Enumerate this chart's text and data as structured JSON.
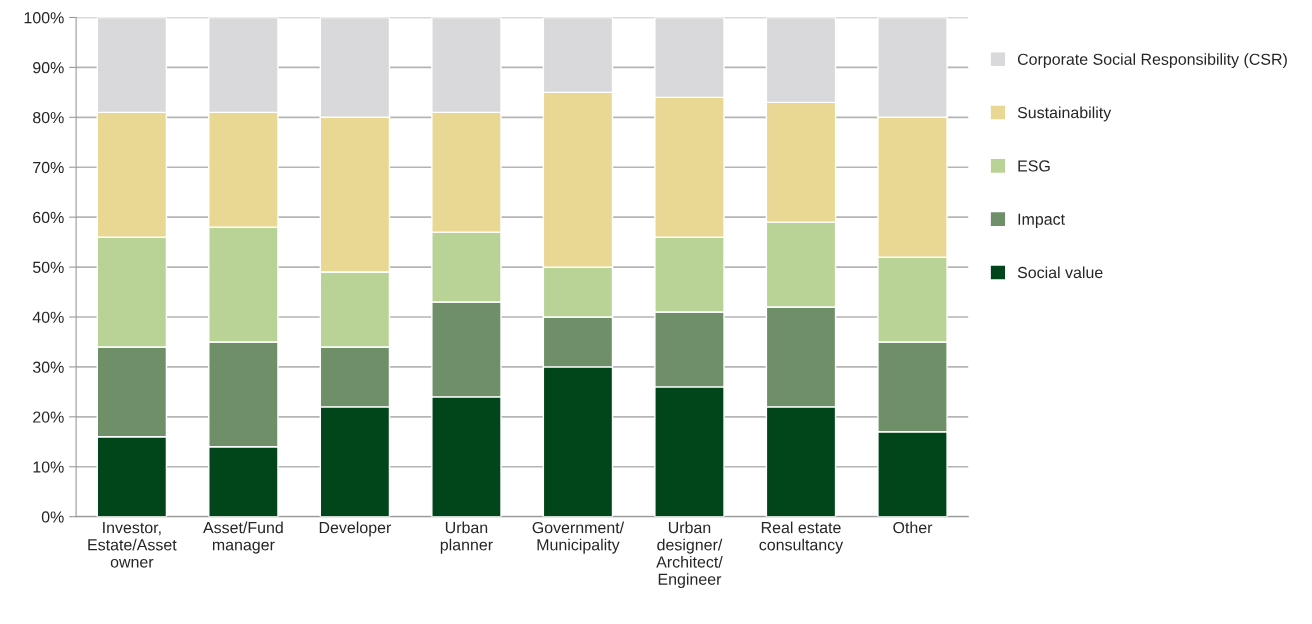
{
  "chart_data": {
    "type": "bar",
    "stacked": true,
    "categories": [
      "Investor,\nEstate/Asset\nowner",
      "Asset/Fund\nmanager",
      "Developer",
      "Urban\nplanner",
      "Government/\nMunicipality",
      "Urban\ndesigner/\nArchitect/\nEngineer",
      "Real estate\nconsultancy",
      "Other"
    ],
    "series": [
      {
        "name": "Social value",
        "color": "#00461a",
        "values": [
          16,
          14,
          22,
          24,
          30,
          26,
          22,
          17
        ]
      },
      {
        "name": "Impact",
        "color": "#6f8f69",
        "values": [
          18,
          21,
          12,
          19,
          10,
          15,
          20,
          18
        ]
      },
      {
        "name": "ESG",
        "color": "#b9d396",
        "values": [
          22,
          23,
          15,
          14,
          10,
          15,
          17,
          17
        ]
      },
      {
        "name": "Sustainability",
        "color": "#e8d893",
        "values": [
          25,
          23,
          31,
          24,
          35,
          28,
          24,
          28
        ]
      },
      {
        "name": "Corporate Social Responsibility (CSR)",
        "color": "#d9d8da",
        "values": [
          19,
          19,
          20,
          19,
          15,
          16,
          17,
          20
        ]
      }
    ],
    "ylim": [
      0,
      100
    ],
    "yticks": [
      {
        "value": 0,
        "label": "0%"
      },
      {
        "value": 10,
        "label": "10%"
      },
      {
        "value": 20,
        "label": "20%"
      },
      {
        "value": 30,
        "label": "30%"
      },
      {
        "value": 40,
        "label": "40%"
      },
      {
        "value": 50,
        "label": "50%"
      },
      {
        "value": 60,
        "label": "60%"
      },
      {
        "value": 70,
        "label": "70%"
      },
      {
        "value": 80,
        "label": "80%"
      },
      {
        "value": 90,
        "label": "90%"
      },
      {
        "value": 100,
        "label": "100%"
      }
    ],
    "grid": "y",
    "legend": "right"
  }
}
